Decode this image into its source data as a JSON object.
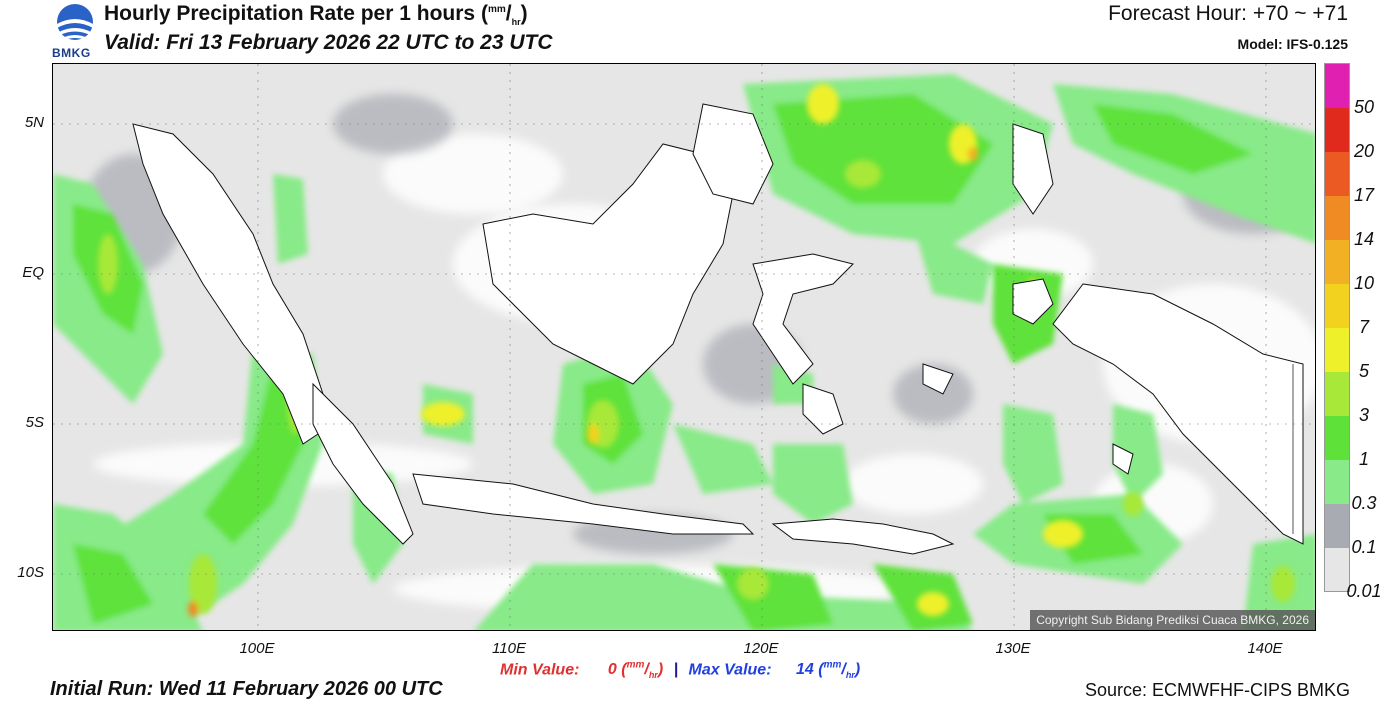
{
  "header": {
    "logo_text": "BMKG",
    "title": "Hourly Precipitation Rate per 1 hours",
    "title_unit_top": "mm",
    "title_unit_bottom": "hr",
    "valid": "Valid: Fri 13 February 2026 22 UTC to 23 UTC",
    "forecast_hour": "Forecast Hour: +70 ~ +71",
    "model": "Model: IFS-0.125"
  },
  "map": {
    "lat_ticks": [
      "5N",
      "EQ",
      "5S",
      "10S"
    ],
    "lon_ticks": [
      "100E",
      "110E",
      "120E",
      "130E",
      "140E"
    ],
    "copyright": "Copyright Sub Bidang Prediksi Cuaca BMKG, 2026",
    "background_color": "#e6e6e6"
  },
  "colorbar": {
    "labels": [
      "50",
      "20",
      "17",
      "14",
      "10",
      "7",
      "5",
      "3",
      "1",
      "0.3",
      "0.1",
      "0.01"
    ],
    "colors": [
      "#e020b0",
      "#e02a1e",
      "#ea5a22",
      "#f08a22",
      "#f2b024",
      "#f2d21e",
      "#eef02a",
      "#a8e838",
      "#5ee23a",
      "#88ea88",
      "#a8abb2",
      "#e6e6e6"
    ]
  },
  "stats": {
    "min_label": "Min Value:",
    "min_value": "0",
    "max_label": "Max Value:",
    "max_value": "14",
    "separator": "|",
    "unit_top": "mm",
    "unit_bottom": "hr"
  },
  "footer": {
    "initial_run": "Initial Run: Wed 11 February 2026 00 UTC",
    "source": "Source: ECMWFHF-CIPS BMKG"
  }
}
